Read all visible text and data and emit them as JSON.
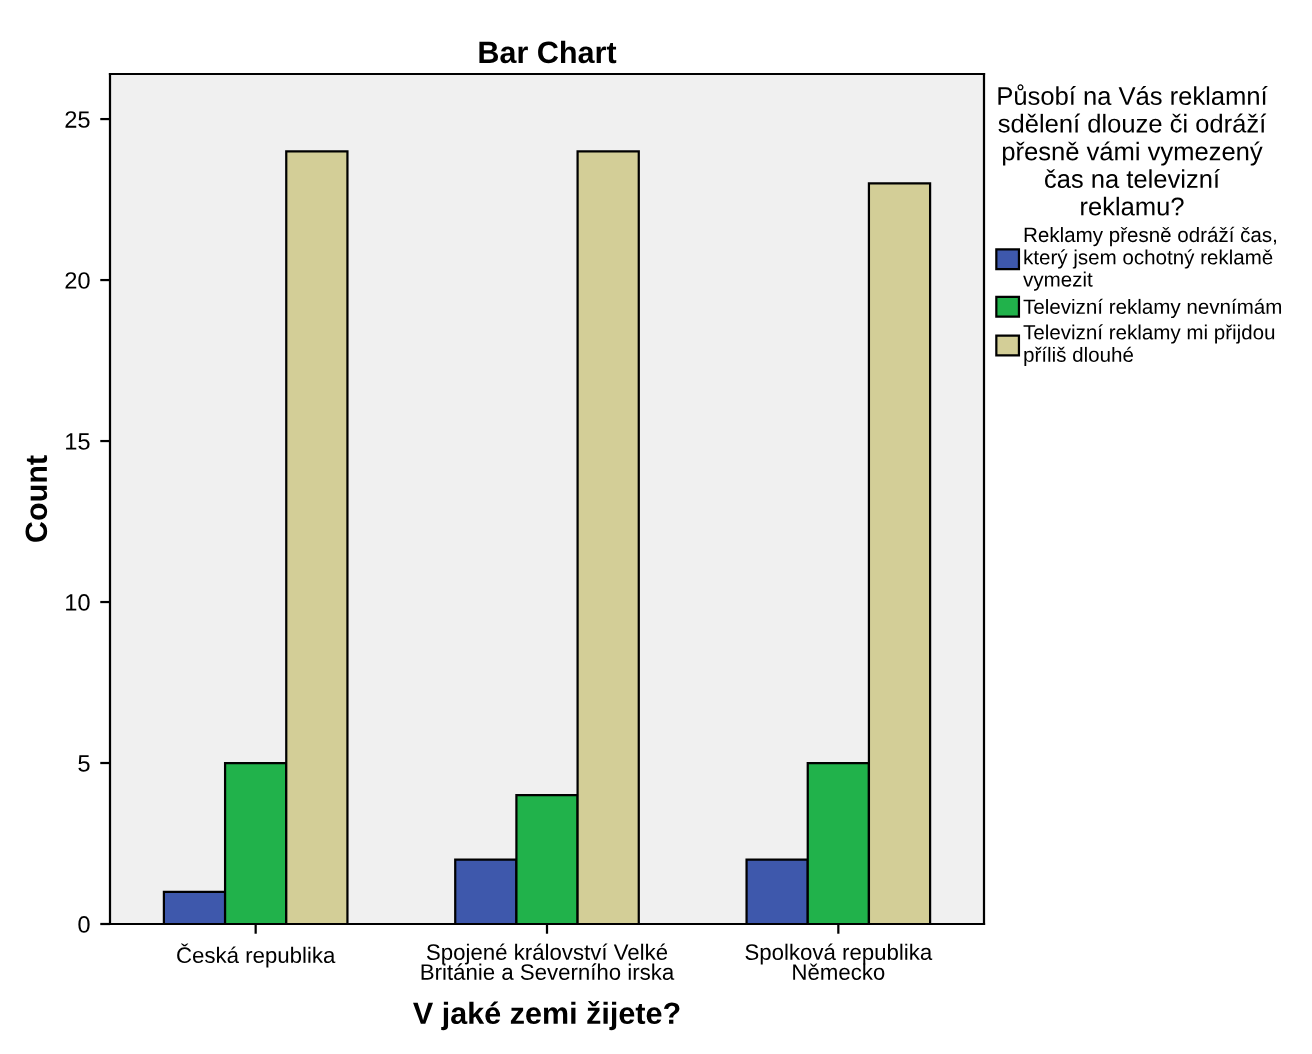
{
  "chart_data": {
    "type": "bar",
    "title": "Bar Chart",
    "xlabel": "V jaké zemi žijete?",
    "ylabel": "Count",
    "categories": [
      "Česká republika",
      "Spojené království Velké\nBritánie a Severního irska",
      "Spolková republika\nNěmecko"
    ],
    "legend_title": "Působí na Vás reklamní\nsdělení dlouze či odráží\npřesně vámi vymezený\nčas na televizní\nreklamu?",
    "series": [
      {
        "name": "Reklamy přesně odráží čas,\nkterý jsem ochotný reklamě\nvymezit",
        "color": "#3e58ac",
        "values": [
          1,
          2,
          2
        ]
      },
      {
        "name": "Televizní reklamy nevnímám",
        "color": "#21b24b",
        "values": [
          5,
          4,
          5
        ]
      },
      {
        "name": "Televizní reklamy mi přijdou\npříliš dlouhé",
        "color": "#d3ce97",
        "values": [
          24,
          24,
          23
        ]
      }
    ],
    "ylim": [
      0,
      26.4
    ],
    "yticks": [
      0,
      5,
      10,
      15,
      20,
      25
    ],
    "grid": false,
    "legend": "right"
  }
}
